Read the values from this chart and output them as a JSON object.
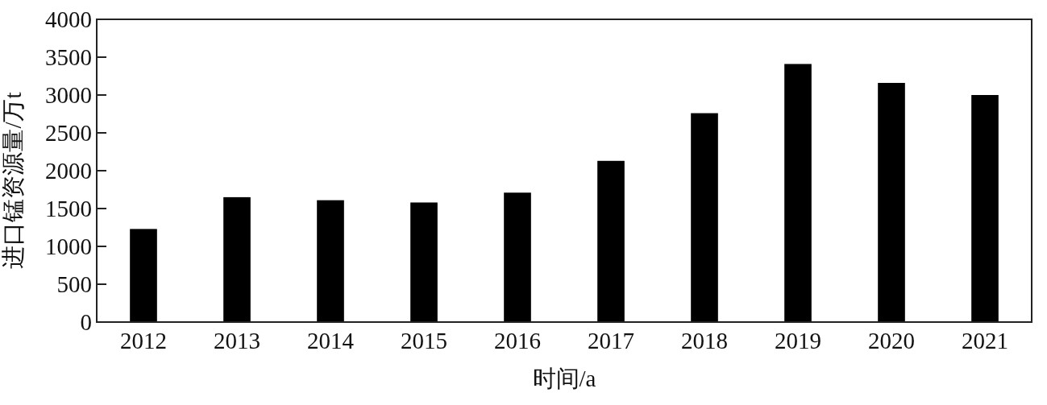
{
  "chart_data": {
    "type": "bar",
    "xlabel": "时间/a",
    "ylabel": "进口锰资源量/万t",
    "categories": [
      "2012",
      "2013",
      "2014",
      "2015",
      "2016",
      "2017",
      "2018",
      "2019",
      "2020",
      "2021"
    ],
    "values": [
      1230,
      1650,
      1610,
      1580,
      1710,
      2130,
      2760,
      3410,
      3160,
      3000
    ],
    "color": "#000000",
    "ylim": [
      0,
      4000
    ],
    "yticks": [
      0,
      500,
      1000,
      1500,
      2000,
      2500,
      3000,
      3500,
      4000
    ],
    "grid": false
  }
}
